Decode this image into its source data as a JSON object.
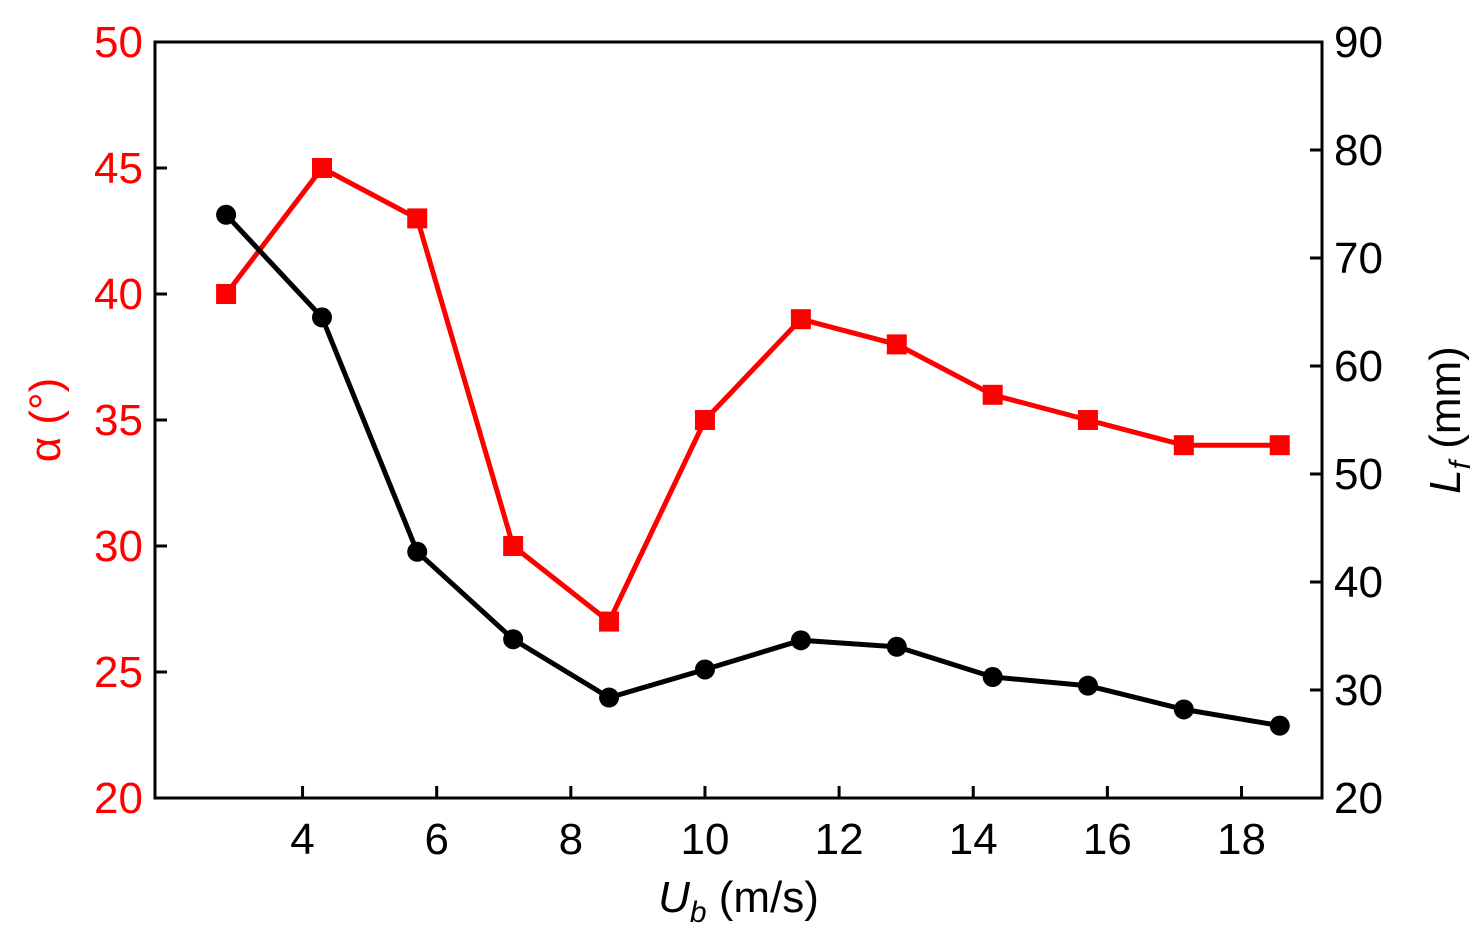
{
  "chart_data": {
    "type": "line",
    "x": [
      2.86,
      4.29,
      5.71,
      7.14,
      8.57,
      10.0,
      11.43,
      12.86,
      14.29,
      15.71,
      17.14,
      18.57
    ],
    "series": [
      {
        "name": "α",
        "axis": "left",
        "color": "#ff0000",
        "marker": "square",
        "values": [
          40,
          45,
          43,
          30,
          27,
          35,
          39,
          38,
          36,
          35,
          34,
          34
        ]
      },
      {
        "name": "Lf",
        "axis": "right",
        "color": "#000000",
        "marker": "circle",
        "values": [
          74,
          64.5,
          42.8,
          34.7,
          29.3,
          31.9,
          34.6,
          34.0,
          31.2,
          30.4,
          28.2,
          26.7
        ]
      }
    ],
    "xlim": [
      1.8,
      19.2
    ],
    "xticks": [
      4,
      6,
      8,
      10,
      12,
      14,
      16,
      18
    ],
    "xtick_labels": [
      "4",
      "6",
      "8",
      "10",
      "12",
      "14",
      "16",
      "18"
    ],
    "ylim_left": [
      20,
      50
    ],
    "yticks_left": [
      20,
      25,
      30,
      35,
      40,
      45,
      50
    ],
    "ytick_labels_left": [
      "20",
      "25",
      "30",
      "35",
      "40",
      "45",
      "50"
    ],
    "ylim_right": [
      20,
      90
    ],
    "yticks_right": [
      20,
      30,
      40,
      50,
      60,
      70,
      80,
      90
    ],
    "ytick_labels_right": [
      "20",
      "30",
      "40",
      "50",
      "60",
      "70",
      "80",
      "90"
    ],
    "xlabel_main": "U",
    "xlabel_sub": "b",
    "xlabel_unit": " (m/s)",
    "ylabel_left": "α (°)",
    "ylabel_right_main": "L",
    "ylabel_right_sub": "f",
    "ylabel_right_unit": " (mm)",
    "left_axis_color": "#ff0000",
    "right_axis_color": "#000000",
    "grid": false,
    "title": ""
  }
}
